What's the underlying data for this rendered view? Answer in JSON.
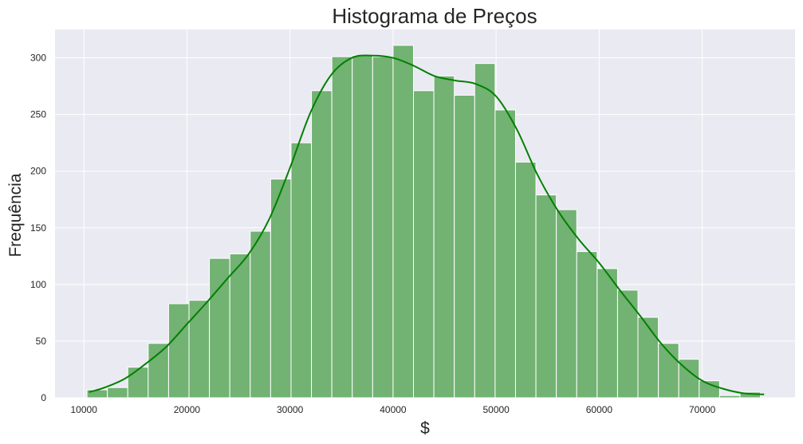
{
  "chart_data": {
    "type": "bar",
    "title": "Histograma de Preços",
    "xlabel": "$",
    "ylabel": "Frequência",
    "xlim": [
      7200,
      79000
    ],
    "ylim": [
      0,
      325
    ],
    "grid": true,
    "legend": "none",
    "x_ticks": [
      10000,
      20000,
      30000,
      40000,
      50000,
      60000,
      70000
    ],
    "y_ticks": [
      0,
      50,
      100,
      150,
      200,
      250,
      300
    ],
    "bin_start": 10300,
    "bin_width": 1980,
    "values": [
      7,
      9,
      27,
      48,
      83,
      86,
      123,
      127,
      147,
      193,
      225,
      271,
      301,
      302,
      301,
      311,
      271,
      284,
      267,
      295,
      254,
      208,
      179,
      166,
      129,
      114,
      95,
      71,
      48,
      34,
      15,
      2,
      5
    ],
    "kde": {
      "x": [
        10500,
        12000,
        14000,
        16000,
        18000,
        20000,
        22000,
        24000,
        26000,
        28000,
        30000,
        32000,
        34000,
        36000,
        38000,
        40000,
        42000,
        44000,
        46000,
        48000,
        50000,
        52000,
        54000,
        56000,
        58000,
        60000,
        62000,
        64000,
        66000,
        68000,
        70000,
        72000,
        74000,
        76000
      ],
      "y": [
        5,
        9,
        17,
        30,
        45,
        65,
        85,
        106,
        127,
        158,
        203,
        252,
        285,
        300,
        302,
        300,
        293,
        284,
        280,
        277,
        266,
        237,
        197,
        165,
        140,
        119,
        95,
        72,
        48,
        29,
        15,
        8,
        4,
        3
      ]
    },
    "colors": {
      "bar": "#72b273",
      "bar_edge": "#ffffff",
      "kde": "#008000",
      "background": "#eaeaf2",
      "grid": "#ffffff"
    }
  }
}
